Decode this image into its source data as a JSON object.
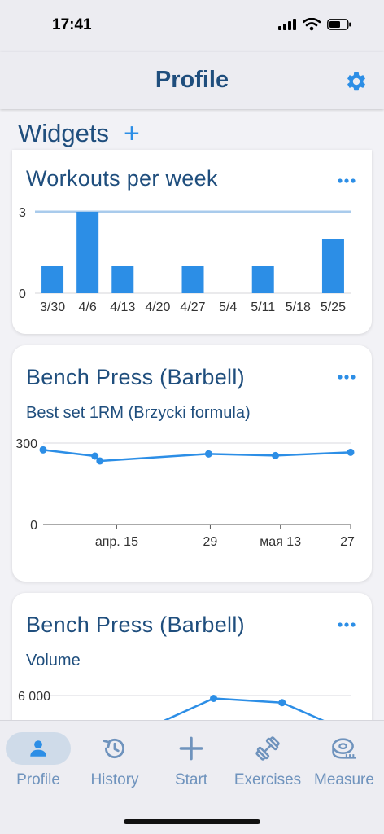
{
  "status_bar": {
    "time": "17:41"
  },
  "nav": {
    "title": "Profile"
  },
  "widgets": {
    "title": "Widgets",
    "add_label": "+"
  },
  "cards": [
    {
      "title": "Workouts per week",
      "subtitle": ""
    },
    {
      "title": "Bench Press (Barbell)",
      "subtitle": "Best set 1RM (Brzycki formula)"
    },
    {
      "title": "Bench Press (Barbell)",
      "subtitle": "Volume"
    }
  ],
  "chart_data": [
    {
      "type": "bar",
      "title": "Workouts per week",
      "categories": [
        "3/30",
        "4/6",
        "4/13",
        "4/20",
        "4/27",
        "5/4",
        "5/11",
        "5/18",
        "5/25"
      ],
      "values": [
        1,
        3,
        1,
        0,
        1,
        0,
        1,
        0,
        2
      ],
      "y_ticks": [
        "0",
        "3"
      ],
      "ylim": [
        0,
        3
      ],
      "reference_line": 3,
      "color": "#2c8ee6",
      "reference_color": "#a9cbec"
    },
    {
      "type": "line",
      "title": "Bench Press (Barbell)",
      "subtitle": "Best set 1RM (Brzycki formula)",
      "x_ticks": [
        "апр. 15",
        "29",
        "мая 13",
        "27"
      ],
      "y_ticks": [
        "0",
        "300"
      ],
      "ylim": [
        0,
        300
      ],
      "points": [
        {
          "x": 0.0,
          "y": 275
        },
        {
          "x": 15.5,
          "y": 252
        },
        {
          "x": 17.0,
          "y": 234
        },
        {
          "x": 49.5,
          "y": 260
        },
        {
          "x": 69.5,
          "y": 254
        },
        {
          "x": 92.0,
          "y": 266
        }
      ],
      "color": "#2c8ee6"
    },
    {
      "type": "line",
      "title": "Bench Press (Barbell)",
      "subtitle": "Volume",
      "y_ticks": [
        "6 000"
      ],
      "y_tick_values": [
        6000
      ],
      "points": [
        {
          "x": 0.0,
          "y": 3200
        },
        {
          "x": 51.0,
          "y": 5900
        },
        {
          "x": 71.5,
          "y": 5750
        },
        {
          "x": 92.0,
          "y": 4700
        }
      ],
      "color": "#2c8ee6"
    }
  ],
  "tabs": [
    {
      "label": "Profile",
      "icon": "person-icon",
      "active": true
    },
    {
      "label": "History",
      "icon": "history-icon",
      "active": false
    },
    {
      "label": "Start",
      "icon": "plus-icon",
      "active": false
    },
    {
      "label": "Exercises",
      "icon": "dumbbell-icon",
      "active": false
    },
    {
      "label": "Measure",
      "icon": "measuring-tape-icon",
      "active": false
    }
  ],
  "colors": {
    "accent": "#2c8ee6",
    "title": "#1f4e7d",
    "tab_inactive": "#6f93bd",
    "tab_active_bg": "#cfdbe9"
  }
}
